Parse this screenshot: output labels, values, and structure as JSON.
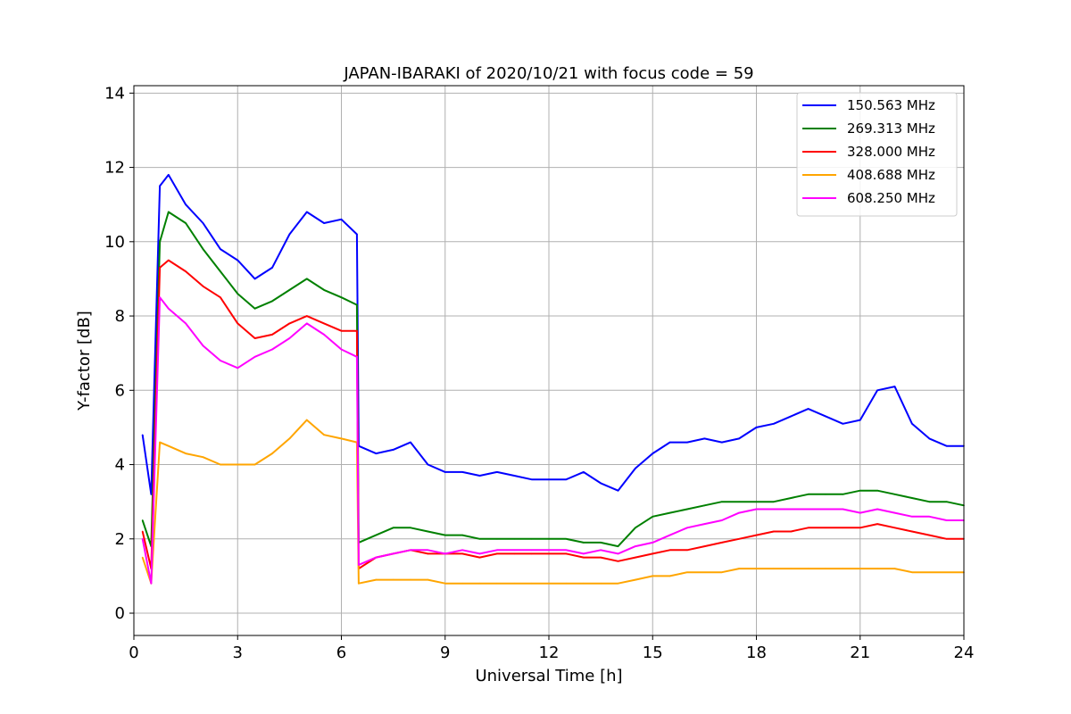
{
  "chart_data": {
    "type": "line",
    "title": "JAPAN-IBARAKI of 2020/10/21 with focus code = 59",
    "xlabel": "Universal Time [h]",
    "ylabel": "Y-factor [dB]",
    "xlim": [
      0,
      24
    ],
    "ylim": [
      -0.6,
      14.2
    ],
    "xticks": [
      0,
      3,
      6,
      9,
      12,
      15,
      18,
      21,
      24
    ],
    "yticks": [
      0,
      2,
      4,
      6,
      8,
      10,
      12,
      14
    ],
    "grid": true,
    "legend_position": "top-right",
    "x": [
      0.25,
      0.5,
      0.75,
      1.0,
      1.5,
      2.0,
      2.5,
      3.0,
      3.5,
      4.0,
      4.5,
      5.0,
      5.5,
      6.0,
      6.45,
      6.5,
      7.0,
      7.5,
      8.0,
      8.5,
      9.0,
      9.5,
      10.0,
      10.5,
      11.0,
      11.5,
      12.0,
      12.5,
      13.0,
      13.5,
      14.0,
      14.5,
      15.0,
      15.5,
      16.0,
      16.5,
      17.0,
      17.5,
      18.0,
      18.5,
      19.0,
      19.5,
      20.0,
      20.5,
      21.0,
      21.5,
      22.0,
      22.5,
      23.0,
      23.5,
      24.0
    ],
    "series": [
      {
        "name": "150.563 MHz",
        "color": "#0000ff",
        "values": [
          4.8,
          3.2,
          11.5,
          11.8,
          11.0,
          10.5,
          9.8,
          9.5,
          9.0,
          9.3,
          10.2,
          10.8,
          10.5,
          10.6,
          10.2,
          4.5,
          4.3,
          4.4,
          4.6,
          4.0,
          3.8,
          3.8,
          3.7,
          3.8,
          3.7,
          3.6,
          3.6,
          3.6,
          3.8,
          3.5,
          3.3,
          3.9,
          4.3,
          4.6,
          4.6,
          4.7,
          4.6,
          4.7,
          5.0,
          5.1,
          5.3,
          5.5,
          5.3,
          5.1,
          5.2,
          6.0,
          6.1,
          5.1,
          4.7,
          4.5,
          4.5
        ]
      },
      {
        "name": "269.313 MHz",
        "color": "#008000",
        "values": [
          2.5,
          1.8,
          10.0,
          10.8,
          10.5,
          9.8,
          9.2,
          8.6,
          8.2,
          8.4,
          8.7,
          9.0,
          8.7,
          8.5,
          8.3,
          1.9,
          2.1,
          2.3,
          2.3,
          2.2,
          2.1,
          2.1,
          2.0,
          2.0,
          2.0,
          2.0,
          2.0,
          2.0,
          1.9,
          1.9,
          1.8,
          2.3,
          2.6,
          2.7,
          2.8,
          2.9,
          3.0,
          3.0,
          3.0,
          3.0,
          3.1,
          3.2,
          3.2,
          3.2,
          3.3,
          3.3,
          3.2,
          3.1,
          3.0,
          3.0,
          2.9
        ]
      },
      {
        "name": "328.000 MHz",
        "color": "#ff0000",
        "values": [
          2.2,
          1.2,
          9.3,
          9.5,
          9.2,
          8.8,
          8.5,
          7.8,
          7.4,
          7.5,
          7.8,
          8.0,
          7.8,
          7.6,
          7.6,
          1.2,
          1.5,
          1.6,
          1.7,
          1.6,
          1.6,
          1.6,
          1.5,
          1.6,
          1.6,
          1.6,
          1.6,
          1.6,
          1.5,
          1.5,
          1.4,
          1.5,
          1.6,
          1.7,
          1.7,
          1.8,
          1.9,
          2.0,
          2.1,
          2.2,
          2.2,
          2.3,
          2.3,
          2.3,
          2.3,
          2.4,
          2.3,
          2.2,
          2.1,
          2.0,
          2.0
        ]
      },
      {
        "name": "408.688 MHz",
        "color": "#ffa500",
        "values": [
          1.5,
          0.8,
          4.6,
          4.5,
          4.3,
          4.2,
          4.0,
          4.0,
          4.0,
          4.3,
          4.7,
          5.2,
          4.8,
          4.7,
          4.6,
          0.8,
          0.9,
          0.9,
          0.9,
          0.9,
          0.8,
          0.8,
          0.8,
          0.8,
          0.8,
          0.8,
          0.8,
          0.8,
          0.8,
          0.8,
          0.8,
          0.9,
          1.0,
          1.0,
          1.1,
          1.1,
          1.1,
          1.2,
          1.2,
          1.2,
          1.2,
          1.2,
          1.2,
          1.2,
          1.2,
          1.2,
          1.2,
          1.1,
          1.1,
          1.1,
          1.1
        ]
      },
      {
        "name": "608.250 MHz",
        "color": "#ff00ff",
        "values": [
          2.0,
          0.8,
          8.5,
          8.2,
          7.8,
          7.2,
          6.8,
          6.6,
          6.9,
          7.1,
          7.4,
          7.8,
          7.5,
          7.1,
          6.9,
          1.3,
          1.5,
          1.6,
          1.7,
          1.7,
          1.6,
          1.7,
          1.6,
          1.7,
          1.7,
          1.7,
          1.7,
          1.7,
          1.6,
          1.7,
          1.6,
          1.8,
          1.9,
          2.1,
          2.3,
          2.4,
          2.5,
          2.7,
          2.8,
          2.8,
          2.8,
          2.8,
          2.8,
          2.8,
          2.7,
          2.8,
          2.7,
          2.6,
          2.6,
          2.5,
          2.5
        ]
      }
    ]
  }
}
